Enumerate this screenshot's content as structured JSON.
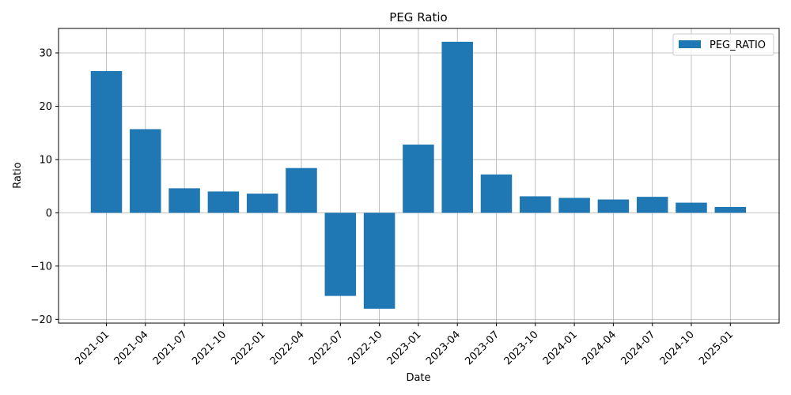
{
  "chart_data": {
    "type": "bar",
    "title": "PEG Ratio",
    "xlabel": "Date",
    "ylabel": "Ratio",
    "categories": [
      "2021-01",
      "2021-04",
      "2021-07",
      "2021-10",
      "2022-01",
      "2022-04",
      "2022-07",
      "2022-10",
      "2023-01",
      "2023-04",
      "2023-07",
      "2023-10",
      "2024-01",
      "2024-04",
      "2024-07",
      "2024-10",
      "2025-01"
    ],
    "series": [
      {
        "name": "PEG_RATIO",
        "values": [
          26.6,
          15.7,
          4.6,
          4.0,
          3.6,
          8.4,
          -15.6,
          -18.0,
          12.8,
          32.1,
          7.2,
          3.1,
          2.8,
          2.5,
          3.0,
          1.9,
          1.1
        ]
      }
    ],
    "ylim": [
      -20.7,
      34.6
    ],
    "yticks": [
      -20,
      -10,
      0,
      10,
      20,
      30
    ],
    "ytick_labels": [
      "−20",
      "−10",
      "0",
      "10",
      "20",
      "30"
    ],
    "grid": true,
    "legend_position": "top-right",
    "bar_color": "#1f77b4"
  }
}
